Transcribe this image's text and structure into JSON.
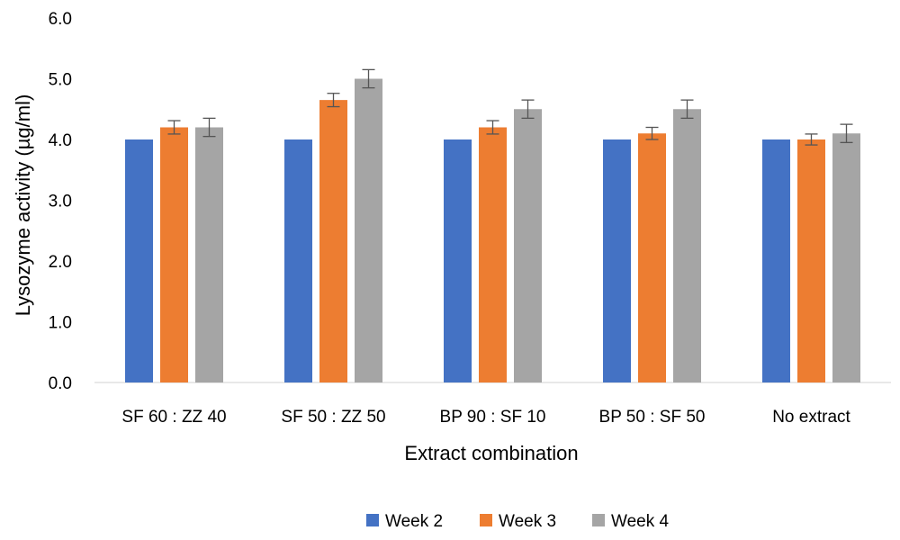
{
  "chart_data": {
    "type": "bar",
    "title": "",
    "xlabel": "Extract combination",
    "ylabel": "Lysozyme activity (µg/ml)",
    "ylim": [
      0,
      6
    ],
    "yticks": [
      "0.0",
      "1.0",
      "2.0",
      "3.0",
      "4.0",
      "5.0",
      "6.0"
    ],
    "categories": [
      "SF 60 : ZZ 40",
      "SF 50 : ZZ 50",
      "BP 90 : SF 10",
      "BP 50 : SF 50",
      "No extract"
    ],
    "series": [
      {
        "name": "Week 2",
        "color": "#4472C4",
        "values": [
          4.0,
          4.0,
          4.0,
          4.0,
          4.0
        ],
        "errors": [
          0,
          0,
          0,
          0,
          0
        ]
      },
      {
        "name": "Week 3",
        "color": "#ED7D31",
        "values": [
          4.2,
          4.65,
          4.2,
          4.1,
          4.0
        ],
        "errors": [
          0.11,
          0.11,
          0.11,
          0.1,
          0.09
        ]
      },
      {
        "name": "Week 4",
        "color": "#A5A5A5",
        "values": [
          4.2,
          5.0,
          4.5,
          4.5,
          4.1
        ],
        "errors": [
          0.15,
          0.15,
          0.15,
          0.15,
          0.15
        ]
      }
    ],
    "grid": false,
    "legend_position": "bottom"
  }
}
